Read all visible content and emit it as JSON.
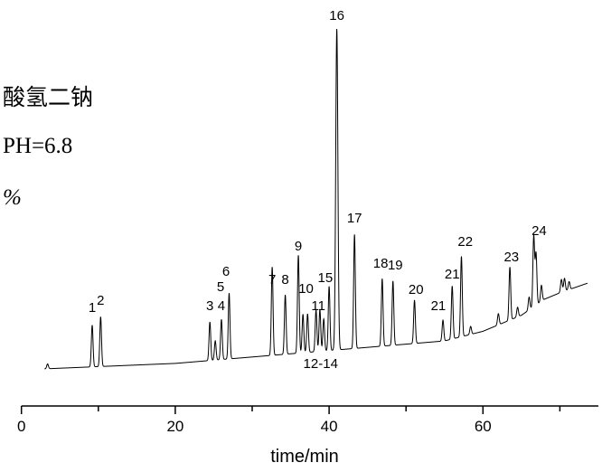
{
  "side_text": [
    "酸氢二钠",
    "PH=6.8",
    "%"
  ],
  "chart_data": {
    "type": "line",
    "title": "",
    "xlabel": "time/min",
    "ylabel": "",
    "xlim": [
      0,
      75
    ],
    "xticks": [
      0,
      20,
      40,
      60
    ],
    "xminor_ticks": [
      10,
      30,
      50,
      70
    ],
    "y_axis_shown": false,
    "grid": false,
    "line_color": "#000000",
    "baseline": [
      [
        0,
        0
      ],
      [
        20,
        2
      ],
      [
        30,
        4
      ],
      [
        40,
        6
      ],
      [
        45,
        7
      ],
      [
        50,
        8
      ],
      [
        55,
        9
      ],
      [
        60,
        12
      ],
      [
        65,
        17
      ],
      [
        68,
        22
      ],
      [
        70,
        24
      ],
      [
        73.6,
        27
      ]
    ],
    "peaks": [
      {
        "t": 3.4,
        "h": 1.5
      },
      {
        "t": 9.2,
        "h": 13
      },
      {
        "t": 10.3,
        "h": 15.5
      },
      {
        "t": 24.5,
        "h": 12
      },
      {
        "t": 25.2,
        "h": 6
      },
      {
        "t": 26.0,
        "h": 12.5
      },
      {
        "t": 27.0,
        "h": 20.5
      },
      {
        "t": 32.6,
        "h": 27.5
      },
      {
        "t": 34.3,
        "h": 18.5
      },
      {
        "t": 36.0,
        "h": 30.5
      },
      {
        "t": 36.6,
        "h": 12
      },
      {
        "t": 37.2,
        "h": 12
      },
      {
        "t": 38.3,
        "h": 13
      },
      {
        "t": 38.8,
        "h": 13
      },
      {
        "t": 39.3,
        "h": 10
      },
      {
        "t": 40.0,
        "h": 20
      },
      {
        "t": 41.0,
        "h": 100
      },
      {
        "t": 43.3,
        "h": 35.5
      },
      {
        "t": 46.9,
        "h": 21
      },
      {
        "t": 48.3,
        "h": 20
      },
      {
        "t": 51.1,
        "h": 13.5
      },
      {
        "t": 54.8,
        "h": 6.5
      },
      {
        "t": 56.0,
        "h": 16.5
      },
      {
        "t": 57.2,
        "h": 25
      },
      {
        "t": 58.4,
        "h": 2.5
      },
      {
        "t": 62.0,
        "h": 3.5
      },
      {
        "t": 63.5,
        "h": 16.5
      },
      {
        "t": 64.5,
        "h": 3
      },
      {
        "t": 66.0,
        "h": 4
      },
      {
        "t": 66.6,
        "h": 22
      },
      {
        "t": 66.9,
        "h": 16
      },
      {
        "t": 67.6,
        "h": 5
      },
      {
        "t": 70.2,
        "h": 4
      },
      {
        "t": 70.6,
        "h": 4
      },
      {
        "t": 71.2,
        "h": 2.5
      }
    ],
    "peak_labels": [
      {
        "text": "1",
        "t": 9.2
      },
      {
        "text": "2",
        "t": 10.3
      },
      {
        "text": "3",
        "t": 24.5
      },
      {
        "text": "4",
        "t": 26.0
      },
      {
        "text": "5",
        "t": 25.9
      },
      {
        "text": "6",
        "t": 26.6
      },
      {
        "text": "7",
        "t": 32.6
      },
      {
        "text": "8",
        "t": 34.3
      },
      {
        "text": "9",
        "t": 36.0
      },
      {
        "text": "10",
        "t": 37.0
      },
      {
        "text": "11",
        "t": 38.6
      },
      {
        "text": "12-14",
        "t": 38.9
      },
      {
        "text": "15",
        "t": 39.5
      },
      {
        "text": "16",
        "t": 41.0
      },
      {
        "text": "17",
        "t": 43.3
      },
      {
        "text": "18",
        "t": 46.7
      },
      {
        "text": "19",
        "t": 48.6
      },
      {
        "text": "20",
        "t": 51.3
      },
      {
        "text": "21",
        "t": 54.2
      },
      {
        "text": "21",
        "t": 56.0
      },
      {
        "text": "22",
        "t": 57.7
      },
      {
        "text": "23",
        "t": 63.7
      },
      {
        "text": "24",
        "t": 67.3
      }
    ]
  }
}
